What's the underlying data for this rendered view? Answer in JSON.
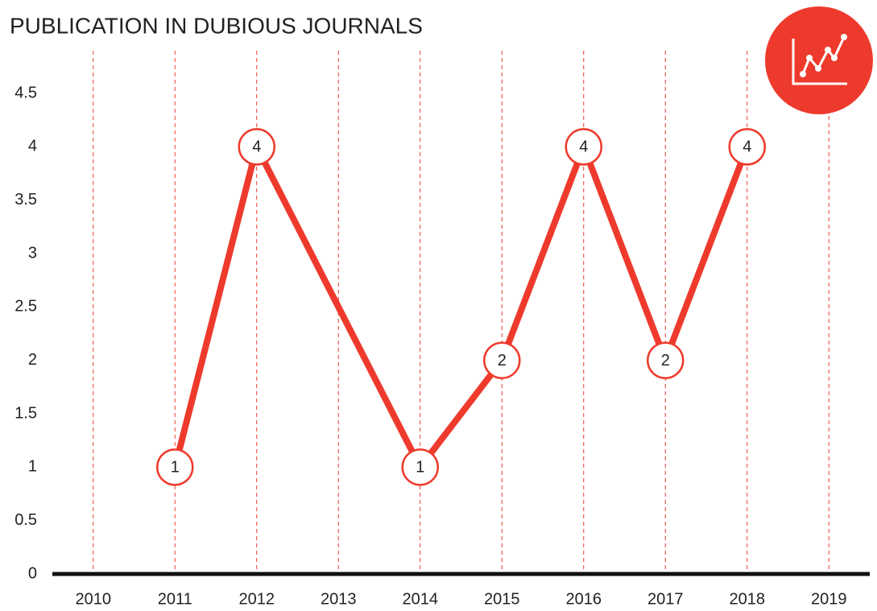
{
  "chart_data": {
    "type": "line",
    "title": "PUBLICATION IN DUBIOUS JOURNALS",
    "x": [
      2011,
      2012,
      2014,
      2015,
      2016,
      2017,
      2018
    ],
    "series": [
      {
        "name": null,
        "color": "#ee3a2c",
        "values": [
          1,
          4,
          1,
          2,
          4,
          2,
          4
        ]
      }
    ],
    "xlim": [
      2009.5,
      2019.5
    ],
    "xticks": [
      2010,
      2011,
      2012,
      2013,
      2014,
      2015,
      2016,
      2017,
      2018,
      2019
    ],
    "ylim": [
      0,
      4.9
    ],
    "yticks": [
      0,
      0.5,
      1,
      1.5,
      2,
      2.5,
      3,
      3.5,
      4,
      4.5
    ],
    "grid": "x"
  }
}
